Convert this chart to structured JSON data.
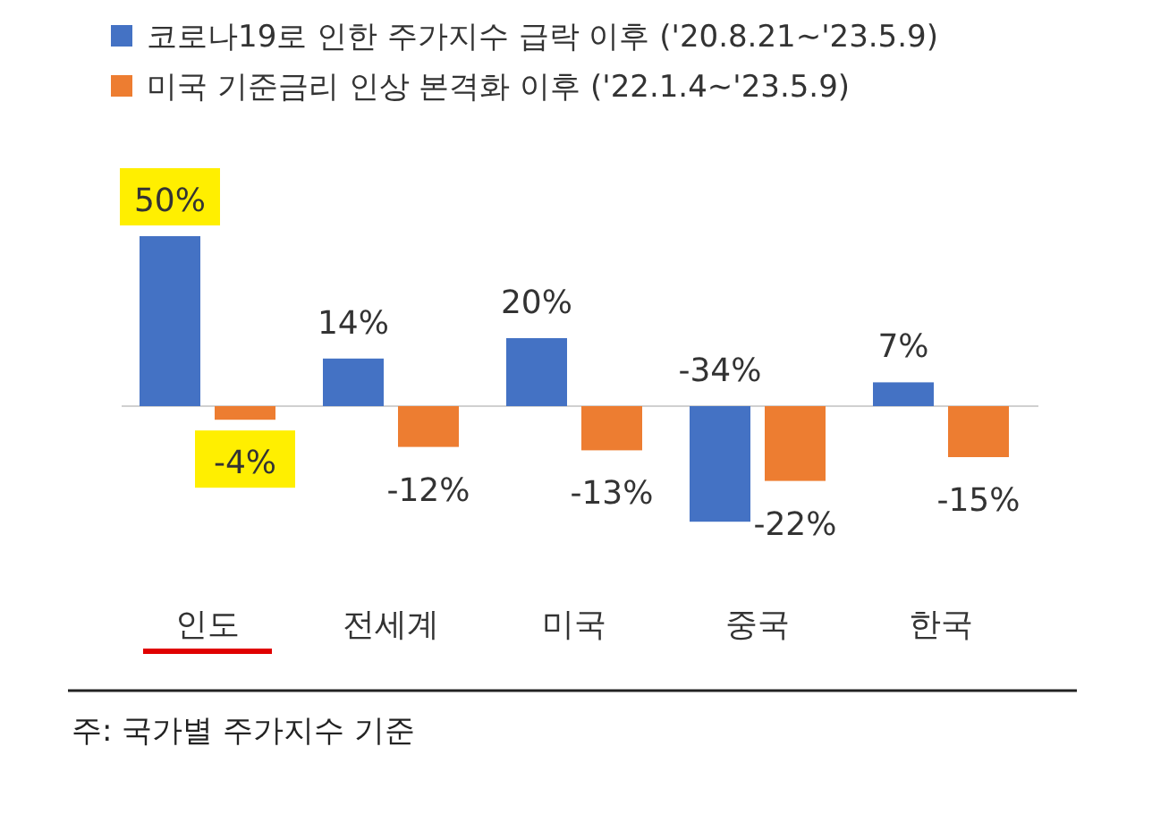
{
  "chart_data": {
    "type": "bar",
    "categories": [
      "인도",
      "전세계",
      "미국",
      "중국",
      "한국"
    ],
    "series": [
      {
        "name": "코로나19로 인한 주가지수 급락 이후 ('20.8.21~'23.5.9)",
        "color": "#4472c4",
        "values": [
          50,
          14,
          20,
          -34,
          7
        ],
        "value_labels": [
          "50%",
          "14%",
          "20%",
          "-34%",
          "7%"
        ]
      },
      {
        "name": "미국 기준금리 인상 본격화 이후 ('22.1.4~'23.5.9)",
        "color": "#ed7d31",
        "values": [
          -4,
          -12,
          -13,
          -22,
          -15
        ],
        "value_labels": [
          "-4%",
          "-12%",
          "-13%",
          "-22%",
          "-15%"
        ]
      }
    ],
    "legend": "top left",
    "annotations": [
      "주: 국가별 주가지수 기준"
    ]
  }
}
